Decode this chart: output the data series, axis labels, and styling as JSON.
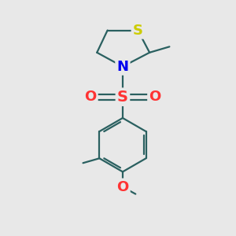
{
  "background_color": "#e8e8e8",
  "atom_colors": {
    "S_thiazolidine": "#cccc00",
    "S_sulfonyl": "#ff3333",
    "N": "#0000ee",
    "O": "#ff3333",
    "C": "#000000"
  },
  "bond_color": "#2a6060",
  "bond_width": 1.6,
  "figsize": [
    3.0,
    3.0
  ],
  "dpi": 100
}
